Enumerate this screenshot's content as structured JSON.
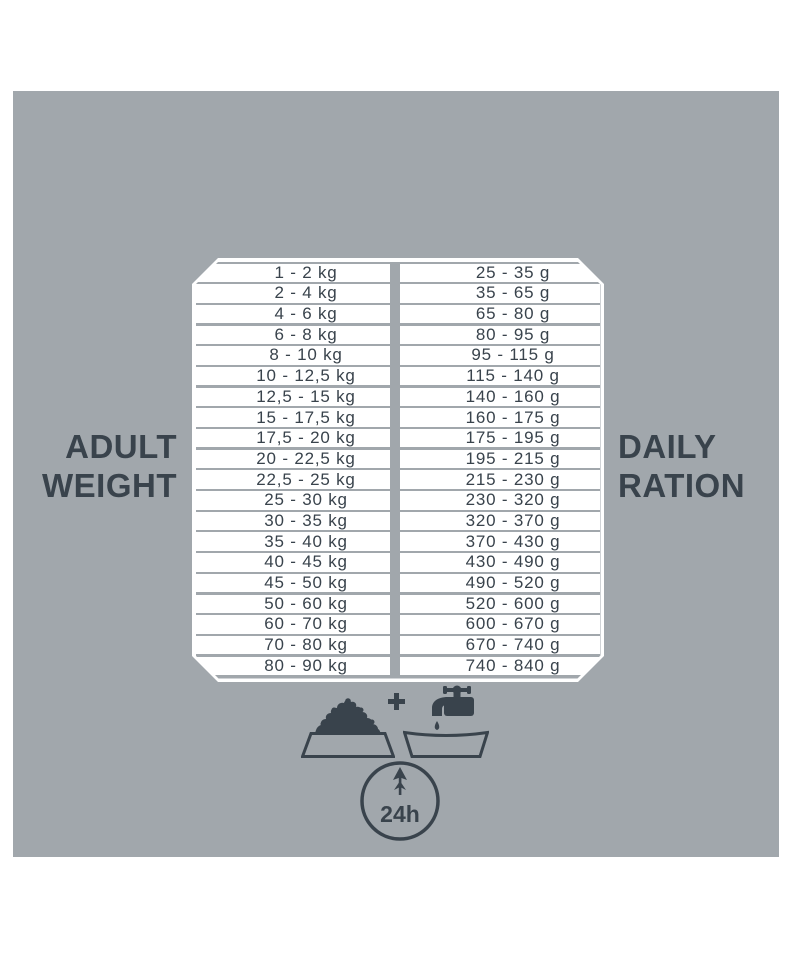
{
  "colors": {
    "background": "#ffffff",
    "panel_gray": "#a1a7ac",
    "ink": "#39434c",
    "row_white": "#ffffff"
  },
  "left_label": {
    "line1": "ADULT",
    "line2": "WEIGHT"
  },
  "right_label": {
    "line1": "DAILY",
    "line2": "RATION"
  },
  "icons": {
    "food_bowl": "kibble-bowl-icon",
    "plus": "plus-icon",
    "water_tap": "water-tap-icon",
    "water_bowl": "water-bowl-icon",
    "duration_badge_icon": "up-arrow-circle-icon",
    "duration_label": "24h"
  },
  "chart_data": {
    "type": "table",
    "columns": [
      "ADULT WEIGHT",
      "DAILY RATION"
    ],
    "weight_unit": "kg",
    "ration_unit": "g",
    "period": "24h",
    "rows": [
      [
        "1 - 2 kg",
        "25 - 35 g"
      ],
      [
        "2 - 4 kg",
        "35 - 65 g"
      ],
      [
        "4 - 6 kg",
        "65 - 80 g"
      ],
      [
        "6 - 8 kg",
        "80 - 95 g"
      ],
      [
        "8 - 10 kg",
        "95 - 115 g"
      ],
      [
        "10 - 12,5 kg",
        "115 - 140 g"
      ],
      [
        "12,5 - 15 kg",
        "140 - 160 g"
      ],
      [
        "15 - 17,5 kg",
        "160 - 175 g"
      ],
      [
        "17,5 - 20 kg",
        "175 - 195 g"
      ],
      [
        "20 - 22,5 kg",
        "195 - 215 g"
      ],
      [
        "22,5 - 25 kg",
        "215 - 230 g"
      ],
      [
        "25 - 30 kg",
        "230 - 320 g"
      ],
      [
        "30 - 35 kg",
        "320 - 370 g"
      ],
      [
        "35 - 40 kg",
        "370 - 430 g"
      ],
      [
        "40 - 45 kg",
        "430 - 490 g"
      ],
      [
        "45 - 50 kg",
        "490 - 520 g"
      ],
      [
        "50 - 60 kg",
        "520 - 600 g"
      ],
      [
        "60 - 70 kg",
        "600 - 670 g"
      ],
      [
        "70 - 80 kg",
        "670 - 740 g"
      ],
      [
        "80 - 90 kg",
        "740 - 840 g"
      ]
    ]
  }
}
